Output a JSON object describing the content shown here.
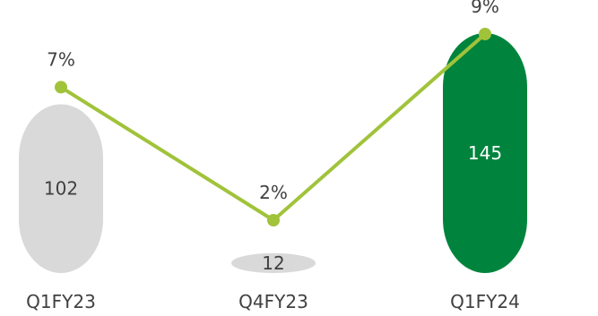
{
  "chart_data": {
    "type": "bar",
    "categories": [
      "Q1FY23",
      "Q4FY23",
      "Q1FY24"
    ],
    "series": [
      {
        "values": [
          102,
          12,
          145
        ],
        "value_labels": [
          "102",
          "12",
          "145"
        ],
        "colors": [
          "#d9d9d9",
          "#d9d9d9",
          "#00843d"
        ]
      },
      {
        "values": [
          7,
          2,
          9
        ],
        "value_labels": [
          "7%",
          "2%",
          "9%"
        ],
        "color": "#a0c33a"
      }
    ],
    "title": "",
    "xlabel": "",
    "ylabel": "",
    "grid": false,
    "legend": "none"
  }
}
